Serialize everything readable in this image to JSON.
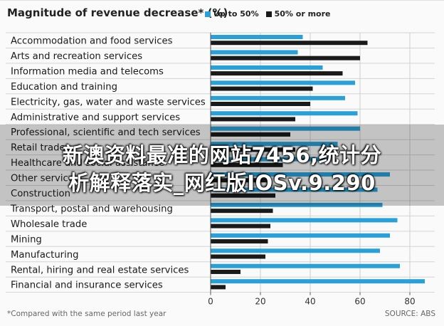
{
  "header": {
    "title": "Magnitude of revenue decrease* (%)"
  },
  "legend": [
    {
      "label": "Up to 50%",
      "color": "#2aa0d8"
    },
    {
      "label": "50% or more",
      "color": "#1a1a1a"
    }
  ],
  "footnote": "*Compared with the same period last year",
  "source": "SOURCE: ABS",
  "watermark": {
    "line1": "新澳资料最准的网站7456,统计分",
    "line2": "析解释落实_网红版IOSv.9.290"
  },
  "chart_data": {
    "type": "bar",
    "orientation": "horizontal",
    "title": "Magnitude of revenue decrease* (%)",
    "xlim": [
      0,
      90
    ],
    "xticks": [
      0,
      20,
      40,
      60,
      80
    ],
    "grid": true,
    "legend_position": "top",
    "categories": [
      "Accommodation and food services",
      "Arts and recreation services",
      "Information media and telecoms",
      "Education and training",
      "Electricity, gas, water and waste services",
      "Administrative and support services",
      "Professional, scientific and tech services",
      "Retail trade",
      "Healthcare and social assistance",
      "Other services",
      "Construction",
      "Transport, postal and warehousing",
      "Wholesale trade",
      "Mining",
      "Manufacturing",
      "Rental, hiring and real estate services",
      "Financial and insurance services"
    ],
    "series": [
      {
        "name": "Up to 50%",
        "color": "#2aa0d8",
        "values": [
          37,
          35,
          45,
          58,
          54,
          59,
          60,
          51,
          47,
          72,
          67,
          69,
          75,
          72,
          68,
          76,
          86
        ]
      },
      {
        "name": "50% or more",
        "color": "#1a1a1a",
        "values": [
          63,
          60,
          53,
          41,
          40,
          34,
          32,
          34,
          29,
          23,
          26,
          25,
          24,
          23,
          22,
          12,
          6
        ]
      }
    ]
  }
}
